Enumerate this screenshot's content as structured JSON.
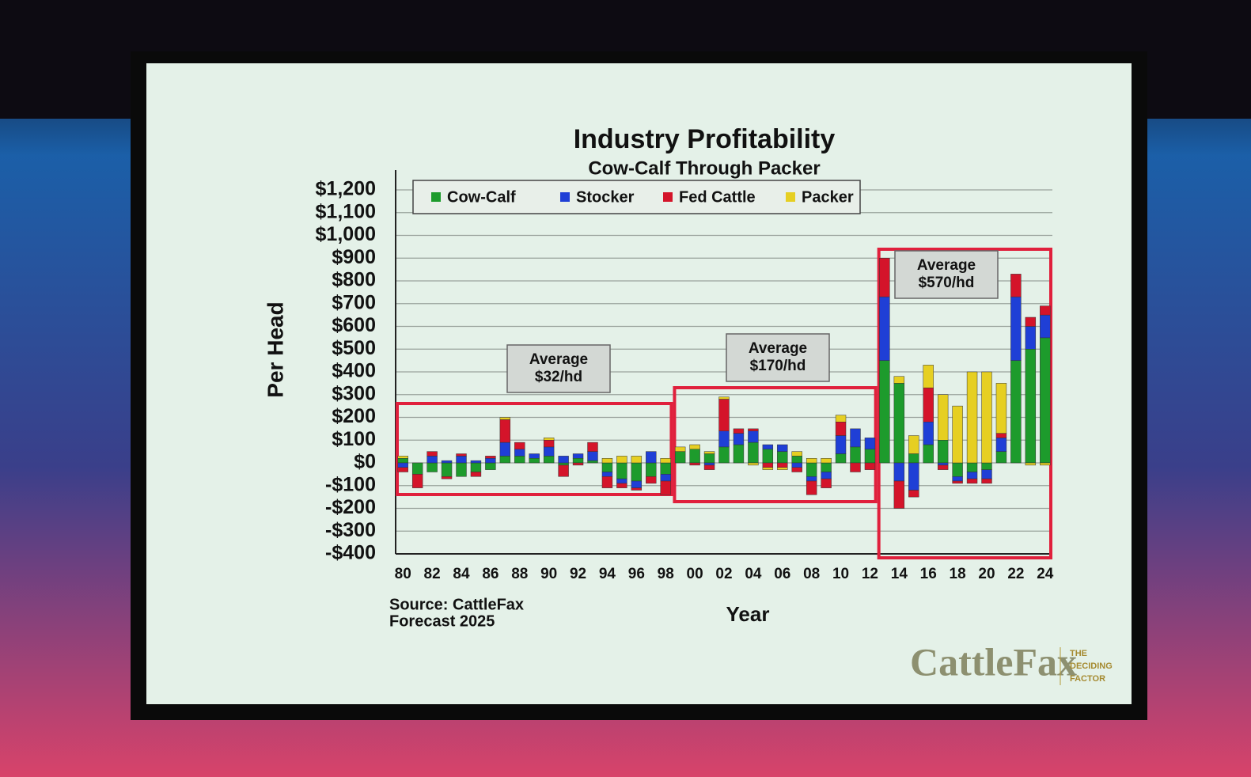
{
  "chart_data": {
    "type": "stacked_bar",
    "title": "Industry Profitability",
    "subtitle": "Cow-Calf Through Packer",
    "y_label": "Per Head",
    "x_label": "Year",
    "source": "Source: CattleFax",
    "note": "Forecast 2025",
    "logo": {
      "name": "CattleFax",
      "tagline": [
        "THE",
        "DECIDING",
        "FACTOR"
      ]
    },
    "annotations": [
      {
        "lines": [
          "Average",
          "$32/hd"
        ]
      },
      {
        "lines": [
          "Average",
          "$170/hd"
        ]
      },
      {
        "lines": [
          "Average",
          "$570/hd"
        ]
      }
    ],
    "categories": [
      "80",
      null,
      "82",
      null,
      "84",
      null,
      "86",
      null,
      "88",
      null,
      "90",
      null,
      "92",
      null,
      "94",
      null,
      "96",
      null,
      "98",
      null,
      "00",
      null,
      "02",
      null,
      "04",
      null,
      "06",
      null,
      "08",
      null,
      "10",
      null,
      "12",
      null,
      "14",
      null,
      "16",
      null,
      "18",
      null,
      "20",
      null,
      "22",
      null,
      "24"
    ],
    "series": [
      {
        "name": "Cow-Calf",
        "color": "#1d9b2c",
        "values": [
          20,
          -50,
          -40,
          -60,
          -60,
          -40,
          -30,
          30,
          30,
          20,
          30,
          -10,
          20,
          10,
          -40,
          -70,
          -80,
          -60,
          -50,
          50,
          60,
          40,
          70,
          80,
          90,
          60,
          50,
          30,
          -60,
          -40,
          40,
          70,
          60,
          450,
          350,
          40,
          80,
          100,
          -60,
          -40,
          -30,
          50,
          450,
          500,
          550
        ]
      },
      {
        "name": "Stocker",
        "color": "#1f3fd6",
        "values": [
          -20,
          0,
          30,
          10,
          30,
          10,
          20,
          60,
          30,
          20,
          40,
          30,
          20,
          40,
          -20,
          -20,
          -30,
          50,
          -30,
          0,
          0,
          -10,
          70,
          50,
          50,
          20,
          30,
          -20,
          -20,
          -30,
          80,
          80,
          50,
          280,
          -80,
          -120,
          100,
          -10,
          -20,
          -30,
          -40,
          60,
          280,
          100,
          100
        ]
      },
      {
        "name": "Fed Cattle",
        "color": "#d4142a",
        "values": [
          -20,
          -60,
          20,
          -10,
          10,
          -20,
          10,
          100,
          30,
          0,
          30,
          -50,
          -10,
          40,
          -50,
          -20,
          -10,
          -30,
          -60,
          0,
          -10,
          -20,
          140,
          20,
          10,
          -20,
          -20,
          -20,
          -60,
          -40,
          60,
          -40,
          -30,
          170,
          -120,
          -30,
          150,
          -20,
          -10,
          -20,
          -20,
          20,
          100,
          40,
          40
        ]
      },
      {
        "name": "Packer",
        "color": "#e6cf22",
        "values": [
          10,
          0,
          0,
          0,
          0,
          0,
          0,
          10,
          0,
          0,
          10,
          0,
          0,
          0,
          20,
          30,
          30,
          0,
          20,
          20,
          20,
          10,
          10,
          0,
          -10,
          -10,
          -10,
          20,
          20,
          20,
          30,
          0,
          0,
          0,
          30,
          80,
          100,
          200,
          250,
          400,
          400,
          220,
          0,
          -10,
          -10
        ]
      }
    ],
    "ylim": [
      -400,
      1200
    ],
    "yticks": [
      {
        "value": -400,
        "label": "-$400"
      },
      {
        "value": -300,
        "label": "-$300"
      },
      {
        "value": -200,
        "label": "-$200"
      },
      {
        "value": -100,
        "label": "-$100"
      },
      {
        "value": 0,
        "label": "$0"
      },
      {
        "value": 100,
        "label": "$100"
      },
      {
        "value": 200,
        "label": "$200"
      },
      {
        "value": 300,
        "label": "$300"
      },
      {
        "value": 400,
        "label": "$400"
      },
      {
        "value": 500,
        "label": "$500"
      },
      {
        "value": 600,
        "label": "$600"
      },
      {
        "value": 700,
        "label": "$700"
      },
      {
        "value": 800,
        "label": "$800"
      },
      {
        "value": 900,
        "label": "$900"
      },
      {
        "value": 1000,
        "label": "$1,000"
      },
      {
        "value": 1100,
        "label": "$1,100"
      },
      {
        "value": 1200,
        "label": "$1,200"
      }
    ],
    "grid": true
  }
}
